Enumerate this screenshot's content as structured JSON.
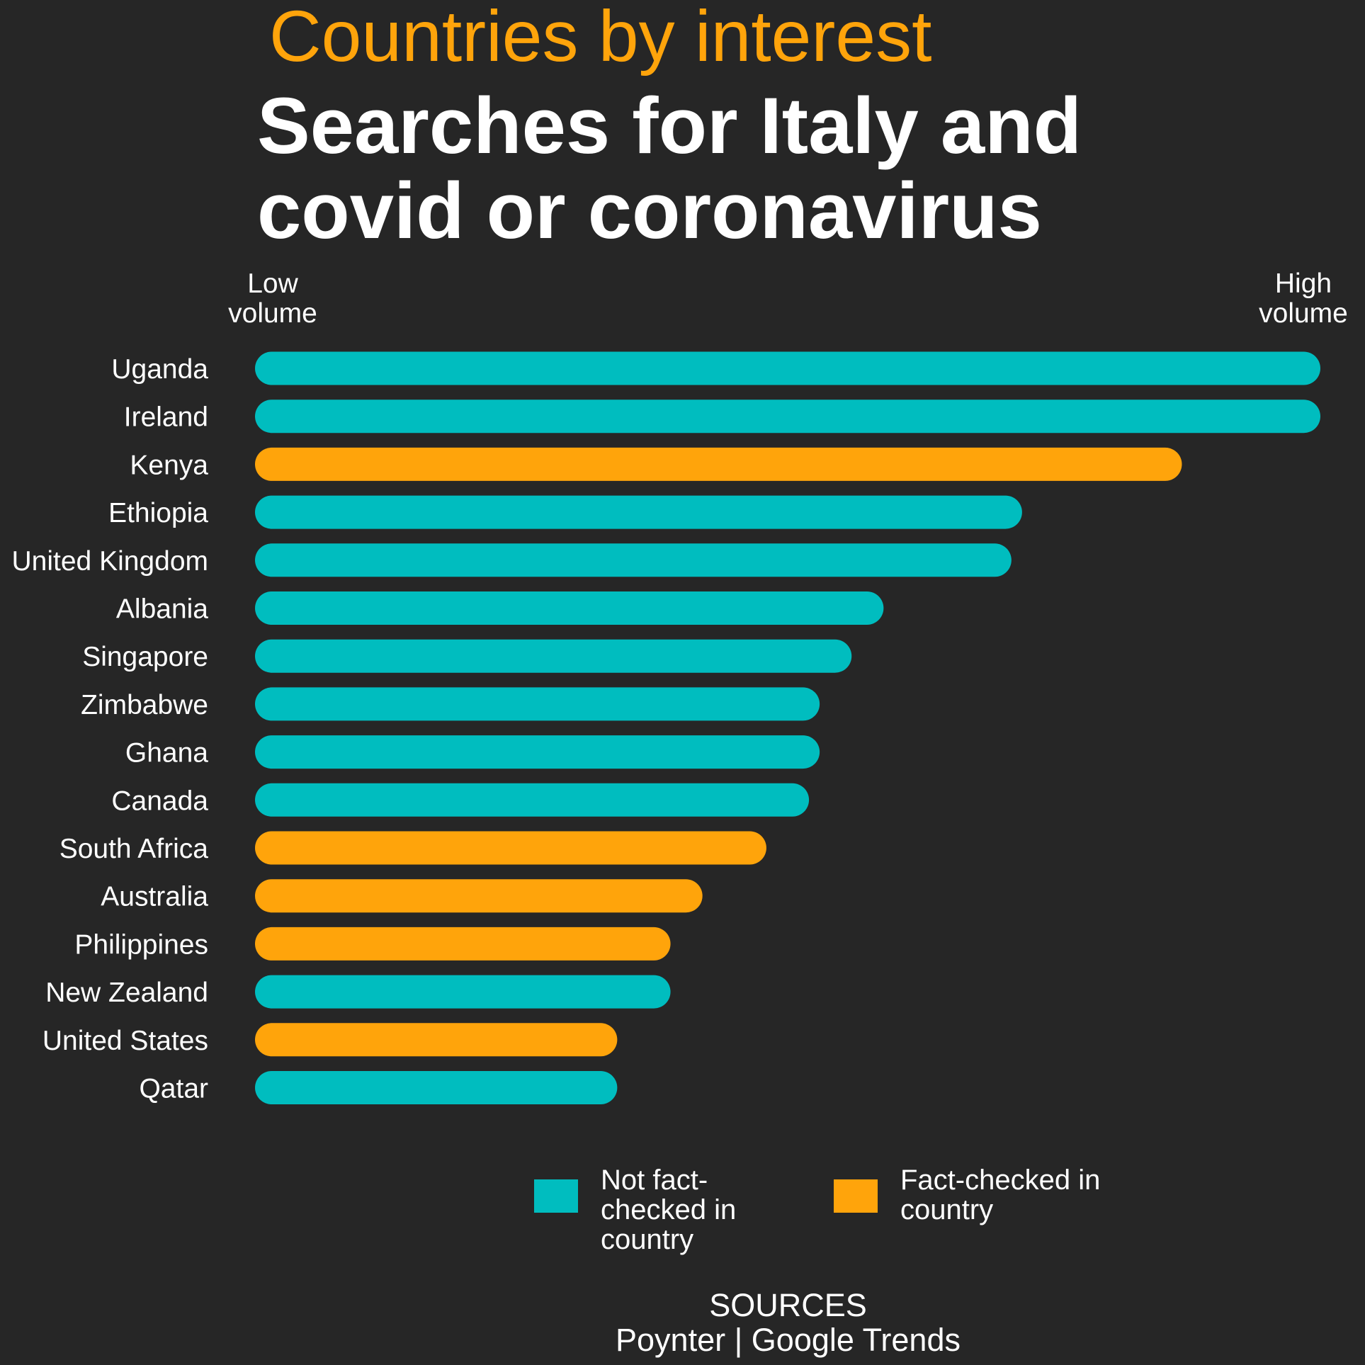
{
  "header": {
    "kicker": "Countries by interest",
    "title": "Searches for Italy and covid or coronavirus"
  },
  "scale": {
    "low_label": "Low volume",
    "high_label": "High volume"
  },
  "legend": [
    {
      "label": "Not fact-checked in country",
      "color": "#00bdbf"
    },
    {
      "label": "Fact-checked in country",
      "color": "#ffa40b"
    }
  ],
  "footer": {
    "sources_heading": "SOURCES",
    "sources_text": "Poynter | Google Trends"
  },
  "chart_data": {
    "type": "bar",
    "orientation": "horizontal",
    "title": "Searches for Italy and covid or coronavirus",
    "subtitle": "Countries by interest",
    "xlabel": "",
    "ylabel": "",
    "xlim": [
      0,
      100
    ],
    "grid": false,
    "legend_position": "bottom",
    "categories": [
      "Uganda",
      "Ireland",
      "Kenya",
      "Ethiopia",
      "United Kingdom",
      "Albania",
      "Singapore",
      "Zimbabwe",
      "Ghana",
      "Canada",
      "South Africa",
      "Australia",
      "Philippines",
      "New Zealand",
      "United States",
      "Qatar"
    ],
    "values": [
      100,
      100,
      87,
      72,
      71,
      59,
      56,
      53,
      53,
      52,
      48,
      42,
      39,
      39,
      34,
      34
    ],
    "fact_checked": [
      false,
      false,
      true,
      false,
      false,
      false,
      false,
      false,
      false,
      false,
      true,
      true,
      true,
      false,
      true,
      false
    ],
    "series": [
      {
        "name": "Not fact-checked in country",
        "color": "#00bdbf"
      },
      {
        "name": "Fact-checked in country",
        "color": "#ffa40b"
      }
    ]
  }
}
